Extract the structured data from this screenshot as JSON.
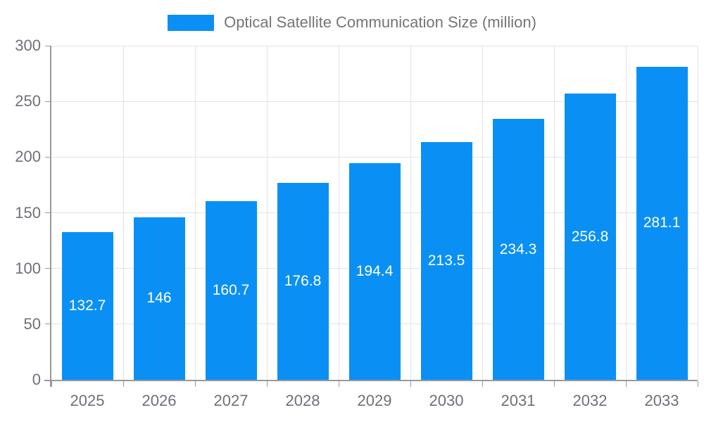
{
  "chart_data": {
    "type": "bar",
    "title": "Optical Satellite Communication Size (million)",
    "legend": [
      "Optical Satellite Communication Size (million)"
    ],
    "legend_position": "top-center",
    "categories": [
      "2025",
      "2026",
      "2027",
      "2028",
      "2029",
      "2030",
      "2031",
      "2032",
      "2033"
    ],
    "values": [
      132.7,
      146,
      160.7,
      176.8,
      194.4,
      213.5,
      234.3,
      256.8,
      281.1
    ],
    "xlabel": "",
    "ylabel": "",
    "ylim": [
      0,
      300
    ],
    "yticks": [
      0,
      50,
      100,
      150,
      200,
      250,
      300
    ],
    "grid": true,
    "value_labels_inside_bars": true,
    "colors": {
      "bar": "#0a90f5",
      "bar_value_text": "#ffffff",
      "axis_line": "#999999",
      "grid_line": "#e3e3e3",
      "tick_label": "#6e7079",
      "legend_text": "#757575",
      "background": "#ffffff"
    }
  }
}
